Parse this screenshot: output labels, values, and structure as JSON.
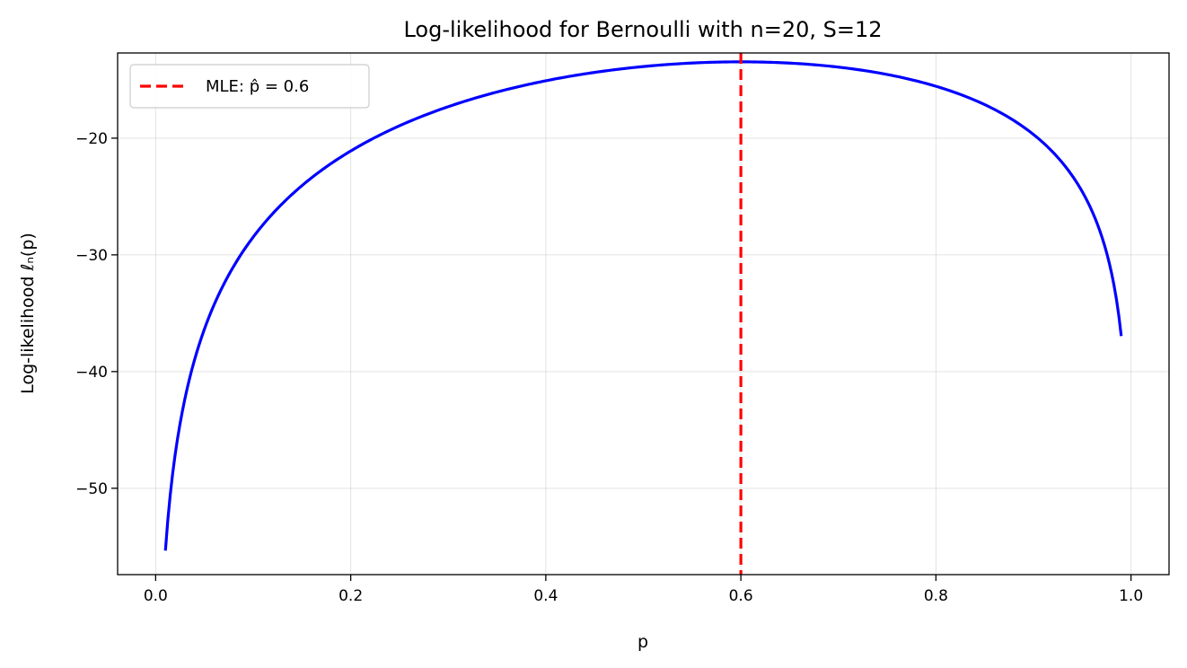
{
  "chart_data": {
    "type": "line",
    "title": "Log-likelihood for Bernoulli with n=20, S=12",
    "xlabel": "p",
    "ylabel": "Log-likelihood ℓₙ(p)",
    "n": 20,
    "S": 12,
    "xlim": [
      -0.039,
      1.039
    ],
    "ylim": [
      -57.4,
      -12.7
    ],
    "x_range": [
      0.01,
      0.99
    ],
    "xticks": [
      0.0,
      0.2,
      0.4,
      0.6,
      0.8,
      1.0
    ],
    "xtick_labels": [
      "0.0",
      "0.2",
      "0.4",
      "0.6",
      "0.8",
      "1.0"
    ],
    "yticks": [
      -20,
      -30,
      -40,
      -50
    ],
    "ytick_labels": [
      "−20",
      "−30",
      "−40",
      "−50"
    ],
    "grid": true,
    "legend_position": "top-left",
    "series": [
      {
        "label": "",
        "color": "#0000ff",
        "style": "solid"
      }
    ],
    "mle_line": {
      "label": "MLE: p̂ = 0.6",
      "x": 0.6,
      "color": "#ff0000",
      "style": "dashed"
    }
  }
}
